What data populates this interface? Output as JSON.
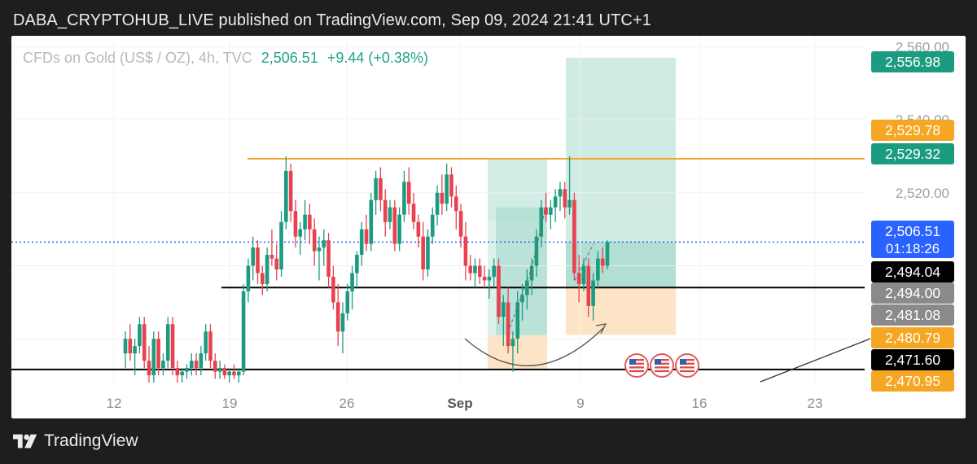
{
  "header": {
    "text": "DABA_CRYPTOHUB_LIVE published on TradingView.com, Sep 09, 2024 21:41 UTC+1"
  },
  "legend": {
    "symbol": "CFDs on Gold (US$ / OZ), 4h, TVC",
    "last": "2,506.51",
    "change": "+9.44 (+0.38%)"
  },
  "footer": {
    "brand": "TradingView"
  },
  "colors": {
    "up": "#1b9b7f",
    "down": "#e8414f",
    "resistance": "#f5a623",
    "support": "#000000",
    "target_zone": "#c7e8df",
    "stop_zone": "#fde4c6",
    "current_price": "#2962ff"
  },
  "chart_data": {
    "type": "candlestick",
    "timeframe": "4h",
    "x_ticks": [
      "12",
      "19",
      "26",
      "Sep",
      "9",
      "16",
      "23"
    ],
    "y_ticks": [
      "2,560.00",
      "2,540.00",
      "2,520.00"
    ],
    "ylim": [
      2468,
      2563
    ],
    "candles": [
      [
        2476,
        2482,
        2472,
        2480
      ],
      [
        2480,
        2484,
        2474,
        2476
      ],
      [
        2476,
        2480,
        2470,
        2478
      ],
      [
        2478,
        2486,
        2476,
        2484
      ],
      [
        2484,
        2486,
        2472,
        2474
      ],
      [
        2474,
        2478,
        2468,
        2470
      ],
      [
        2470,
        2482,
        2468,
        2480
      ],
      [
        2480,
        2482,
        2470,
        2472
      ],
      [
        2472,
        2476,
        2470,
        2474
      ],
      [
        2474,
        2486,
        2472,
        2484
      ],
      [
        2484,
        2486,
        2470,
        2472
      ],
      [
        2472,
        2474,
        2468,
        2470
      ],
      [
        2470,
        2472,
        2468,
        2471
      ],
      [
        2471,
        2473,
        2469,
        2472
      ],
      [
        2472,
        2476,
        2470,
        2474
      ],
      [
        2474,
        2476,
        2470,
        2472
      ],
      [
        2472,
        2478,
        2470,
        2476
      ],
      [
        2476,
        2484,
        2474,
        2482
      ],
      [
        2482,
        2484,
        2472,
        2474
      ],
      [
        2474,
        2476,
        2469,
        2471
      ],
      [
        2471,
        2474,
        2469,
        2472
      ],
      [
        2472,
        2473,
        2469,
        2470
      ],
      [
        2470,
        2472,
        2468,
        2471
      ],
      [
        2471,
        2473,
        2469,
        2470
      ],
      [
        2470,
        2472,
        2468,
        2471
      ],
      [
        2471,
        2495,
        2470,
        2493
      ],
      [
        2493,
        2502,
        2490,
        2500
      ],
      [
        2500,
        2508,
        2496,
        2505
      ],
      [
        2505,
        2507,
        2495,
        2498
      ],
      [
        2498,
        2500,
        2492,
        2495
      ],
      [
        2495,
        2505,
        2493,
        2503
      ],
      [
        2503,
        2510,
        2500,
        2502
      ],
      [
        2502,
        2506,
        2496,
        2499
      ],
      [
        2499,
        2515,
        2497,
        2512
      ],
      [
        2512,
        2530,
        2510,
        2526
      ],
      [
        2526,
        2528,
        2512,
        2515
      ],
      [
        2515,
        2518,
        2505,
        2508
      ],
      [
        2508,
        2512,
        2503,
        2510
      ],
      [
        2510,
        2518,
        2507,
        2514
      ],
      [
        2514,
        2517,
        2506,
        2510
      ],
      [
        2510,
        2513,
        2500,
        2504
      ],
      [
        2504,
        2508,
        2496,
        2505
      ],
      [
        2505,
        2510,
        2500,
        2507
      ],
      [
        2507,
        2509,
        2494,
        2497
      ],
      [
        2497,
        2500,
        2488,
        2490
      ],
      [
        2490,
        2495,
        2478,
        2482
      ],
      [
        2482,
        2490,
        2476,
        2487
      ],
      [
        2487,
        2495,
        2485,
        2493
      ],
      [
        2493,
        2500,
        2488,
        2498
      ],
      [
        2498,
        2504,
        2494,
        2503
      ],
      [
        2503,
        2512,
        2500,
        2510
      ],
      [
        2510,
        2514,
        2504,
        2506
      ],
      [
        2506,
        2520,
        2504,
        2518
      ],
      [
        2518,
        2526,
        2514,
        2524
      ],
      [
        2524,
        2527,
        2515,
        2518
      ],
      [
        2518,
        2521,
        2508,
        2512
      ],
      [
        2512,
        2518,
        2510,
        2516
      ],
      [
        2516,
        2518,
        2504,
        2506
      ],
      [
        2506,
        2516,
        2504,
        2514
      ],
      [
        2514,
        2526,
        2512,
        2523
      ],
      [
        2523,
        2527,
        2514,
        2517
      ],
      [
        2517,
        2520,
        2510,
        2512
      ],
      [
        2512,
        2514,
        2505,
        2508
      ],
      [
        2508,
        2512,
        2496,
        2499
      ],
      [
        2499,
        2510,
        2497,
        2508
      ],
      [
        2508,
        2516,
        2506,
        2514
      ],
      [
        2514,
        2522,
        2511,
        2520
      ],
      [
        2520,
        2525,
        2514,
        2517
      ],
      [
        2517,
        2528,
        2515,
        2525
      ],
      [
        2525,
        2527,
        2516,
        2519
      ],
      [
        2519,
        2522,
        2510,
        2515
      ],
      [
        2515,
        2517,
        2505,
        2508
      ],
      [
        2508,
        2512,
        2496,
        2500
      ],
      [
        2500,
        2503,
        2496,
        2498
      ],
      [
        2498,
        2502,
        2494,
        2500
      ],
      [
        2500,
        2502,
        2495,
        2497
      ],
      [
        2497,
        2500,
        2494,
        2496
      ],
      [
        2496,
        2499,
        2491,
        2497
      ],
      [
        2497,
        2502,
        2494,
        2500
      ],
      [
        2500,
        2502,
        2484,
        2486
      ],
      [
        2486,
        2492,
        2478,
        2490
      ],
      [
        2490,
        2494,
        2476,
        2478
      ],
      [
        2478,
        2482,
        2471,
        2480
      ],
      [
        2480,
        2493,
        2476,
        2490
      ],
      [
        2490,
        2495,
        2485,
        2492
      ],
      [
        2492,
        2499,
        2488,
        2496
      ],
      [
        2496,
        2502,
        2492,
        2500
      ],
      [
        2500,
        2510,
        2497,
        2508
      ],
      [
        2508,
        2518,
        2505,
        2516
      ],
      [
        2516,
        2520,
        2512,
        2514
      ],
      [
        2514,
        2518,
        2510,
        2516
      ],
      [
        2516,
        2521,
        2512,
        2519
      ],
      [
        2519,
        2523,
        2515,
        2521
      ],
      [
        2521,
        2523,
        2513,
        2516
      ],
      [
        2516,
        2530,
        2514,
        2518
      ],
      [
        2518,
        2520,
        2496,
        2498
      ],
      [
        2498,
        2503,
        2490,
        2495
      ],
      [
        2495,
        2502,
        2493,
        2500
      ],
      [
        2500,
        2502,
        2486,
        2489
      ],
      [
        2489,
        2498,
        2485,
        2496
      ],
      [
        2496,
        2504,
        2494,
        2502
      ],
      [
        2502,
        2505,
        2498,
        2500
      ],
      [
        2500,
        2507,
        2499,
        2506.51
      ]
    ],
    "resistance_line": 2529.32,
    "support_line_1": 2494.04,
    "support_line_2": 2471.6,
    "current_price_line": 2506.51,
    "position_1": {
      "target": 2529.32,
      "entry": 2512.5,
      "stop": 2471.6
    },
    "position_2": {
      "target": 2556.98,
      "entry": 2494.04,
      "stop": 2481.08
    },
    "price_tags": [
      {
        "value": "2,556.98",
        "sub": "",
        "color": "#1b9b7f"
      },
      {
        "value": "2,529.78",
        "sub": "",
        "color": "#f5a623"
      },
      {
        "value": "2,529.32",
        "sub": "",
        "color": "#1b9b7f"
      },
      {
        "value": "2,506.51",
        "sub": "01:18:26",
        "color": "#2962ff"
      },
      {
        "value": "2,494.04",
        "sub": "",
        "color": "#000000"
      },
      {
        "value": "2,494.00",
        "sub": "",
        "color": "#8a8a8a"
      },
      {
        "value": "2,481.08",
        "sub": "",
        "color": "#8a8a8a"
      },
      {
        "value": "2,480.79",
        "sub": "",
        "color": "#f5a623"
      },
      {
        "value": "2,471.60",
        "sub": "",
        "color": "#000000"
      },
      {
        "value": "2,470.95",
        "sub": "",
        "color": "#f5a623"
      }
    ],
    "event_markers": 3
  }
}
